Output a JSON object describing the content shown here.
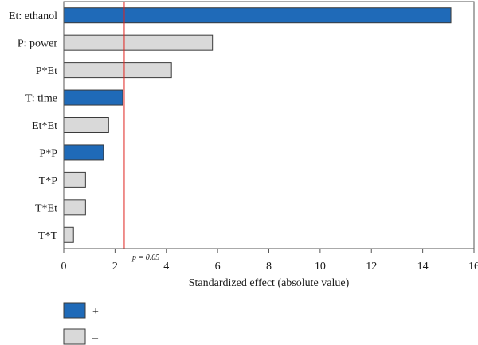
{
  "chart_data": {
    "type": "bar",
    "orientation": "horizontal",
    "categories": [
      "Et: ethanol",
      "P: power",
      "P*Et",
      "T: time",
      "Et*Et",
      "P*P",
      "T*P",
      "T*Et",
      "T*T"
    ],
    "values": [
      15.1,
      5.8,
      4.2,
      2.3,
      1.75,
      1.55,
      0.85,
      0.85,
      0.38
    ],
    "signs": [
      "+",
      "−",
      "−",
      "+",
      "−",
      "+",
      "−",
      "−",
      "−"
    ],
    "xlabel": "Standardized effect (absolute value)",
    "xlim": [
      0,
      16
    ],
    "xticks": [
      0,
      2,
      4,
      6,
      8,
      10,
      12,
      14,
      16
    ],
    "reference_line": {
      "value": 2.36,
      "label": "p = 0.05",
      "color": "#e0231f"
    },
    "legend": [
      {
        "sign": "+",
        "label": "+",
        "color": "#1f6ab8"
      },
      {
        "sign": "−",
        "label": "–",
        "color": "#d9d9d9"
      }
    ],
    "legend_position": "bottom-left",
    "grid": false,
    "colors": {
      "positive": "#1f6ab8",
      "negative": "#d9d9d9",
      "frame": "#555555"
    }
  }
}
